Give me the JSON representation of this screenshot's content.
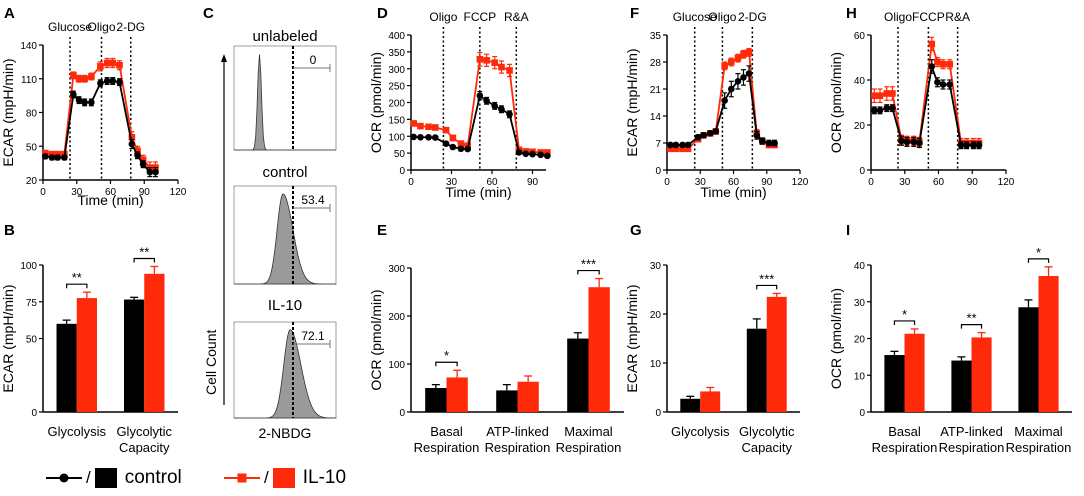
{
  "colors": {
    "control": "#000000",
    "il10": "#ff2a0a",
    "fill_hist": "#9a9a9a",
    "axis": "#000000"
  },
  "legend": {
    "control_label": "control",
    "il10_label": "IL-10",
    "separator": "/"
  },
  "line_panels": [
    {
      "letter": "A",
      "ylabel": "ECAR (mpH/min)",
      "xlabel": "Time (min)",
      "xlim": [
        0,
        120
      ],
      "ylim": [
        20,
        140
      ],
      "xticks": [
        0,
        30,
        60,
        90,
        120
      ],
      "yticks": [
        20,
        50,
        80,
        110,
        140
      ],
      "injections": [
        24,
        52,
        78
      ],
      "injection_label_text": [
        "Glucose",
        "Oligo",
        "2-DG"
      ],
      "series": [
        {
          "name": "control",
          "x": [
            2,
            8,
            13,
            19,
            27,
            32,
            37,
            43,
            51,
            57,
            62,
            68,
            79,
            84,
            89,
            95,
            100
          ],
          "y": [
            41,
            40,
            40,
            40,
            96,
            91,
            89,
            89,
            106,
            108,
            108,
            107,
            52,
            42,
            34,
            27,
            27
          ],
          "err": [
            2,
            2,
            2,
            2,
            3,
            3,
            3,
            3,
            3,
            3,
            3,
            3,
            4,
            3,
            3,
            4,
            4
          ]
        },
        {
          "name": "IL-10",
          "x": [
            2,
            8,
            13,
            19,
            27,
            32,
            37,
            43,
            51,
            57,
            62,
            68,
            79,
            84,
            89,
            95,
            100
          ],
          "y": [
            44,
            43,
            43,
            43,
            113,
            110,
            110,
            112,
            121,
            124,
            124,
            122,
            58,
            46,
            38,
            31,
            31
          ],
          "err": [
            2,
            2,
            2,
            2,
            3,
            3,
            3,
            3,
            4,
            4,
            4,
            4,
            5,
            4,
            4,
            5,
            5
          ]
        }
      ]
    },
    {
      "letter": "D",
      "ylabel": "OCR (pmol/min)",
      "xlabel": "Time (min)",
      "xlim": [
        0,
        100
      ],
      "ylim": [
        0,
        400
      ],
      "xticks": [
        0,
        30,
        60,
        90
      ],
      "yticks": [
        0,
        50,
        100,
        150,
        200,
        250,
        300,
        350,
        400
      ],
      "injections": [
        24,
        51,
        78
      ],
      "injection_label_text": [
        "Oligo",
        "FCCP",
        "R&A"
      ],
      "series": [
        {
          "name": "control",
          "x": [
            2,
            7,
            13,
            18,
            26,
            31,
            37,
            42,
            51,
            56,
            62,
            67,
            73,
            80,
            85,
            90,
            96,
            101
          ],
          "y": [
            98,
            97,
            97,
            96,
            78,
            68,
            63,
            62,
            220,
            205,
            190,
            180,
            165,
            52,
            48,
            47,
            45,
            42
          ],
          "err": [
            4,
            4,
            4,
            4,
            5,
            5,
            5,
            5,
            12,
            10,
            10,
            10,
            10,
            5,
            4,
            4,
            4,
            4
          ]
        },
        {
          "name": "IL-10",
          "x": [
            2,
            7,
            13,
            18,
            26,
            31,
            37,
            42,
            51,
            56,
            62,
            67,
            73,
            80,
            85,
            90,
            96,
            101
          ],
          "y": [
            138,
            130,
            128,
            126,
            118,
            95,
            78,
            72,
            328,
            325,
            318,
            305,
            295,
            60,
            55,
            54,
            52,
            52
          ],
          "err": [
            5,
            5,
            5,
            5,
            6,
            8,
            8,
            8,
            20,
            18,
            18,
            18,
            18,
            6,
            5,
            5,
            5,
            5
          ]
        }
      ]
    },
    {
      "letter": "F",
      "ylabel": "ECAR (mpH/min)",
      "xlabel": "Time (min)",
      "xlim": [
        0,
        120
      ],
      "ylim": [
        0,
        35
      ],
      "xticks": [
        0,
        30,
        60,
        90,
        120
      ],
      "yticks": [
        0,
        7,
        14,
        21,
        28,
        35
      ],
      "injections": [
        25,
        50,
        77
      ],
      "injection_label_text": [
        "Glucose",
        "Oligo",
        "2-DG"
      ],
      "series": [
        {
          "name": "control",
          "x": [
            3,
            8,
            14,
            19,
            28,
            33,
            39,
            44,
            52,
            58,
            64,
            69,
            74,
            81,
            86,
            92,
            97
          ],
          "y": [
            6.5,
            6.5,
            6.5,
            6.5,
            8.5,
            9,
            9.5,
            10,
            18,
            21,
            23,
            24,
            25,
            9,
            7.5,
            7,
            7
          ],
          "err": [
            0.5,
            0.5,
            0.5,
            0.5,
            0.6,
            0.6,
            0.6,
            0.6,
            2,
            2,
            2,
            2,
            2,
            1,
            0.8,
            0.7,
            0.7
          ]
        },
        {
          "name": "IL-10",
          "x": [
            3,
            8,
            14,
            19,
            28,
            33,
            39,
            44,
            52,
            58,
            64,
            69,
            74,
            81,
            86,
            92,
            97
          ],
          "y": [
            5.5,
            5.5,
            5.5,
            5.5,
            8,
            9,
            9.5,
            10,
            27,
            28,
            29,
            30,
            30.5,
            9.5,
            7.5,
            6.5,
            6.5
          ],
          "err": [
            0.5,
            0.5,
            0.5,
            0.5,
            0.6,
            0.6,
            0.6,
            0.6,
            1,
            1,
            1,
            1,
            1,
            1,
            0.8,
            0.7,
            0.7
          ]
        }
      ]
    },
    {
      "letter": "H",
      "ylabel": "OCR (pmol/min)",
      "xlabel": "",
      "xlim": [
        0,
        120
      ],
      "ylim": [
        0,
        60
      ],
      "xticks": [
        0,
        30,
        60,
        90,
        120
      ],
      "yticks": [
        0,
        20,
        40,
        60
      ],
      "injections": [
        24,
        51,
        77
      ],
      "injection_label_text": [
        "Oligo",
        "FCCP",
        "R&A"
      ],
      "series": [
        {
          "name": "control",
          "x": [
            3,
            8,
            14,
            19,
            27,
            32,
            38,
            43,
            54,
            59,
            64,
            70,
            80,
            85,
            91,
            96
          ],
          "y": [
            26.5,
            26.5,
            27.5,
            27.5,
            13,
            12.5,
            12.5,
            12,
            46,
            39,
            38,
            38,
            11,
            11,
            11,
            11
          ],
          "err": [
            1.5,
            1.5,
            1.5,
            1.5,
            2,
            2,
            2,
            2,
            3,
            2,
            2,
            2,
            1.5,
            1.5,
            1.5,
            1.5
          ]
        },
        {
          "name": "IL-10",
          "x": [
            3,
            8,
            14,
            19,
            27,
            32,
            38,
            43,
            54,
            59,
            64,
            70,
            80,
            85,
            91,
            96
          ],
          "y": [
            33,
            33,
            34,
            34,
            13.5,
            13,
            13,
            12.5,
            56,
            48,
            47,
            47,
            12,
            12,
            12,
            12
          ],
          "err": [
            3,
            3,
            3,
            3,
            2,
            2,
            2,
            2,
            3,
            2,
            2,
            2,
            2,
            2,
            2,
            2
          ]
        }
      ]
    }
  ],
  "bar_panels": [
    {
      "letter": "B",
      "ylabel": "ECAR (mpH/min)",
      "ylim": [
        0,
        100
      ],
      "yticks": [
        0,
        50,
        75,
        100
      ],
      "categories": [
        [
          "Glycolysis"
        ],
        [
          "Glycolytic",
          "Capacity"
        ]
      ],
      "control": [
        60,
        76.5
      ],
      "control_err": [
        2.5,
        1.5
      ],
      "il10": [
        77.5,
        94
      ],
      "il10_err": [
        4,
        5
      ],
      "significance": [
        "**",
        "**"
      ]
    },
    {
      "letter": "E",
      "ylabel": "OCR (pmol/min)",
      "ylim": [
        0,
        300
      ],
      "yticks": [
        0,
        100,
        200,
        300
      ],
      "categories": [
        [
          "Basal",
          "Respiration"
        ],
        [
          "ATP-linked",
          "Respiration"
        ],
        [
          "Maximal",
          "Respiration"
        ]
      ],
      "control": [
        50,
        45,
        153
      ],
      "control_err": [
        7,
        12,
        12
      ],
      "il10": [
        72,
        63,
        260
      ],
      "il10_err": [
        15,
        12,
        18
      ],
      "significance": [
        "*",
        "",
        "***"
      ]
    },
    {
      "letter": "G",
      "ylabel": "ECAR (mpH/min)",
      "ylim": [
        0,
        30
      ],
      "yticks": [
        0,
        10,
        20,
        30
      ],
      "categories": [
        [
          "Glycolysis"
        ],
        [
          "Glycolytic",
          "Capacity"
        ]
      ],
      "control": [
        2.7,
        17
      ],
      "control_err": [
        0.5,
        2
      ],
      "il10": [
        4.2,
        23.5
      ],
      "il10_err": [
        0.8,
        0.7
      ],
      "significance": [
        "",
        "***"
      ]
    },
    {
      "letter": "I",
      "ylabel": "OCR (pmol/min)",
      "ylim": [
        0,
        40
      ],
      "yticks": [
        0,
        10,
        20,
        30,
        40
      ],
      "categories": [
        [
          "Basal",
          "Respiration"
        ],
        [
          "ATP-linked",
          "Respiration"
        ],
        [
          "Maximal",
          "Respiration"
        ]
      ],
      "control": [
        15.5,
        14,
        28.5
      ],
      "control_err": [
        1,
        1,
        2
      ],
      "il10": [
        21.3,
        20.3,
        37
      ],
      "il10_err": [
        1.3,
        1.3,
        2.5
      ],
      "significance": [
        "*",
        "**",
        "*"
      ]
    }
  ],
  "flow_panel": {
    "letter": "C",
    "axis_labels": {
      "y": "Cell Count",
      "x": "2-NBDG"
    },
    "histograms": [
      {
        "title": "unlabeled",
        "gate_value": "0",
        "peak_position": 0.25,
        "width": 0.04,
        "tail": false
      },
      {
        "title": "control",
        "gate_value": "53.4",
        "peak_position": 0.48,
        "width": 0.12,
        "tail": true
      },
      {
        "title": "IL-10",
        "gate_value": "72.1",
        "peak_position": 0.55,
        "width": 0.13,
        "tail": true
      }
    ]
  }
}
